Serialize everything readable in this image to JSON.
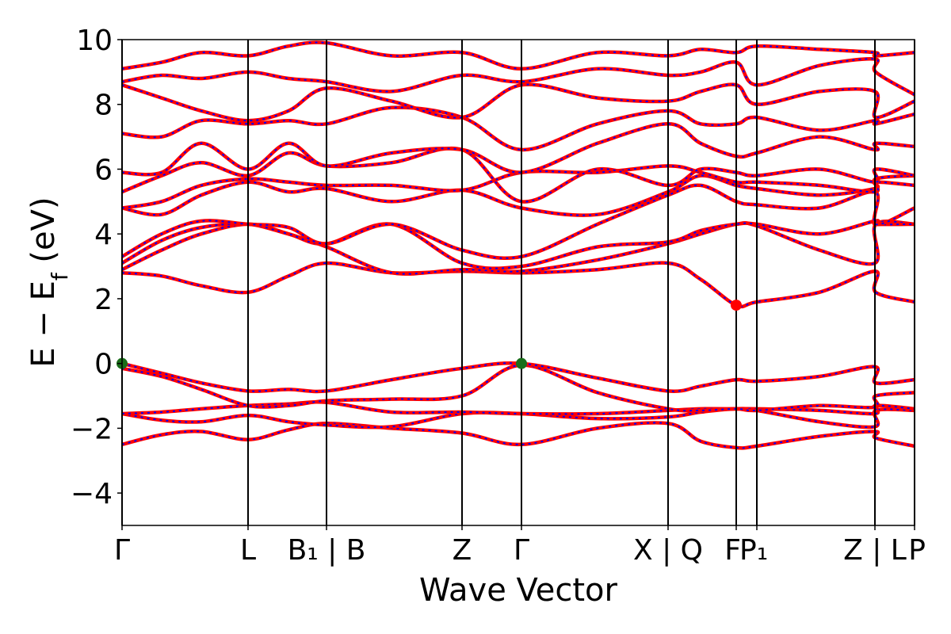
{
  "chart_data": {
    "type": "line",
    "title": "",
    "xlabel": "Wave Vector",
    "ylabel": "E − E",
    "ylabel_sub": "f",
    "ylabel_unit": " (eV)",
    "ylim": [
      -5,
      10
    ],
    "yticks": [
      -4,
      -2,
      0,
      2,
      4,
      6,
      8,
      10
    ],
    "ytick_labels": [
      "−4",
      "−2",
      "0",
      "2",
      "4",
      "6",
      "8",
      "10"
    ],
    "xlim": [
      0,
      1
    ],
    "grid": false,
    "legend": "none",
    "kpoints": [
      {
        "x": 0.0,
        "label": "Γ"
      },
      {
        "x": 0.159,
        "label": "L"
      },
      {
        "x": 0.258,
        "label": "B₁ | B"
      },
      {
        "x": 0.429,
        "label": "Z"
      },
      {
        "x": 0.504,
        "label": "Γ"
      },
      {
        "x": 0.689,
        "label": "X | Q"
      },
      {
        "x": 0.775,
        "label": "F"
      },
      {
        "x": 0.801,
        "label": "P₁"
      },
      {
        "x": 0.95,
        "label": "Z | L"
      },
      {
        "x": 1.0,
        "label": "P"
      }
    ],
    "series_colors": {
      "outer": "#ff0000",
      "inner": "#0000ff"
    },
    "special_points": [
      {
        "x": 0.0,
        "y": 0.0,
        "color": "#1a6e1a"
      },
      {
        "x": 0.504,
        "y": 0.0,
        "color": "#1a6e1a"
      },
      {
        "x": 0.775,
        "y": 1.8,
        "color": "#ff0000"
      }
    ],
    "bands": [
      [
        [
          0,
          -2.5
        ],
        [
          0.05,
          -2.2
        ],
        [
          0.1,
          -2.1
        ],
        [
          0.159,
          -2.35
        ],
        [
          0.21,
          -2.05
        ],
        [
          0.258,
          -1.85
        ],
        [
          0.34,
          -2.0
        ],
        [
          0.429,
          -2.15
        ],
        [
          0.504,
          -2.5
        ],
        [
          0.6,
          -2.0
        ],
        [
          0.689,
          -1.85
        ],
        [
          0.73,
          -2.4
        ],
        [
          0.775,
          -2.6
        ],
        [
          0.801,
          -2.55
        ],
        [
          0.88,
          -2.25
        ],
        [
          0.95,
          -2.1
        ],
        [
          0.951,
          -2.3
        ],
        [
          1.0,
          -2.55
        ]
      ],
      [
        [
          0,
          -1.55
        ],
        [
          0.05,
          -1.75
        ],
        [
          0.1,
          -1.8
        ],
        [
          0.159,
          -1.6
        ],
        [
          0.21,
          -1.8
        ],
        [
          0.258,
          -1.9
        ],
        [
          0.34,
          -1.95
        ],
        [
          0.429,
          -1.55
        ],
        [
          0.504,
          -1.55
        ],
        [
          0.6,
          -1.7
        ],
        [
          0.689,
          -1.65
        ],
        [
          0.73,
          -1.5
        ],
        [
          0.775,
          -1.4
        ],
        [
          0.801,
          -1.45
        ],
        [
          0.88,
          -1.8
        ],
        [
          0.95,
          -1.95
        ],
        [
          0.951,
          -1.45
        ],
        [
          1.0,
          -1.45
        ]
      ],
      [
        [
          0,
          -1.55
        ],
        [
          0.05,
          -1.5
        ],
        [
          0.1,
          -1.4
        ],
        [
          0.159,
          -1.3
        ],
        [
          0.21,
          -1.25
        ],
        [
          0.258,
          -1.2
        ],
        [
          0.34,
          -1.5
        ],
        [
          0.429,
          -1.5
        ],
        [
          0.504,
          -1.55
        ],
        [
          0.6,
          -1.55
        ],
        [
          0.689,
          -1.45
        ],
        [
          0.73,
          -1.4
        ],
        [
          0.775,
          -1.4
        ],
        [
          0.801,
          -1.4
        ],
        [
          0.88,
          -1.45
        ],
        [
          0.95,
          -1.55
        ],
        [
          0.951,
          -1.3
        ],
        [
          1.0,
          -1.4
        ]
      ],
      [
        [
          0,
          -0.15
        ],
        [
          0.05,
          -0.4
        ],
        [
          0.1,
          -0.8
        ],
        [
          0.159,
          -1.3
        ],
        [
          0.21,
          -1.3
        ],
        [
          0.258,
          -1.15
        ],
        [
          0.34,
          -1.1
        ],
        [
          0.429,
          -1.0
        ],
        [
          0.504,
          -0.05
        ],
        [
          0.6,
          -0.9
        ],
        [
          0.689,
          -1.4
        ],
        [
          0.73,
          -1.45
        ],
        [
          0.775,
          -1.4
        ],
        [
          0.801,
          -1.45
        ],
        [
          0.88,
          -1.3
        ],
        [
          0.95,
          -1.35
        ],
        [
          0.951,
          -1.0
        ],
        [
          1.0,
          -0.9
        ]
      ],
      [
        [
          0,
          0.0
        ],
        [
          0.05,
          -0.3
        ],
        [
          0.1,
          -0.6
        ],
        [
          0.159,
          -0.85
        ],
        [
          0.21,
          -0.8
        ],
        [
          0.258,
          -0.85
        ],
        [
          0.34,
          -0.5
        ],
        [
          0.429,
          -0.15
        ],
        [
          0.504,
          0.0
        ],
        [
          0.6,
          -0.45
        ],
        [
          0.689,
          -0.85
        ],
        [
          0.73,
          -0.7
        ],
        [
          0.775,
          -0.5
        ],
        [
          0.801,
          -0.55
        ],
        [
          0.88,
          -0.4
        ],
        [
          0.95,
          -0.1
        ],
        [
          0.951,
          -0.6
        ],
        [
          1.0,
          -0.5
        ]
      ],
      [
        [
          0,
          2.8
        ],
        [
          0.05,
          2.7
        ],
        [
          0.1,
          2.4
        ],
        [
          0.159,
          2.2
        ],
        [
          0.21,
          2.7
        ],
        [
          0.258,
          3.1
        ],
        [
          0.34,
          2.8
        ],
        [
          0.429,
          2.85
        ],
        [
          0.504,
          2.8
        ],
        [
          0.6,
          2.9
        ],
        [
          0.689,
          3.1
        ],
        [
          0.73,
          2.6
        ],
        [
          0.775,
          1.8
        ],
        [
          0.801,
          1.9
        ],
        [
          0.88,
          2.2
        ],
        [
          0.95,
          2.85
        ],
        [
          0.951,
          2.2
        ],
        [
          1.0,
          1.9
        ]
      ],
      [
        [
          0,
          2.9
        ],
        [
          0.05,
          3.5
        ],
        [
          0.1,
          4.0
        ],
        [
          0.159,
          4.3
        ],
        [
          0.21,
          4.0
        ],
        [
          0.258,
          3.6
        ],
        [
          0.34,
          2.8
        ],
        [
          0.429,
          2.9
        ],
        [
          0.504,
          2.85
        ],
        [
          0.6,
          3.2
        ],
        [
          0.689,
          3.7
        ],
        [
          0.73,
          4.0
        ],
        [
          0.775,
          4.3
        ],
        [
          0.801,
          4.25
        ],
        [
          0.88,
          3.5
        ],
        [
          0.95,
          3.1
        ],
        [
          0.951,
          4.3
        ],
        [
          1.0,
          4.3
        ]
      ],
      [
        [
          0,
          3.1
        ],
        [
          0.05,
          3.8
        ],
        [
          0.1,
          4.2
        ],
        [
          0.159,
          4.3
        ],
        [
          0.21,
          4.0
        ],
        [
          0.258,
          3.7
        ],
        [
          0.34,
          4.3
        ],
        [
          0.429,
          3.1
        ],
        [
          0.504,
          3.0
        ],
        [
          0.6,
          3.6
        ],
        [
          0.689,
          3.75
        ],
        [
          0.73,
          4.1
        ],
        [
          0.775,
          4.3
        ],
        [
          0.801,
          4.3
        ],
        [
          0.88,
          4.0
        ],
        [
          0.95,
          4.4
        ],
        [
          0.951,
          4.3
        ],
        [
          1.0,
          4.3
        ]
      ],
      [
        [
          0,
          3.3
        ],
        [
          0.05,
          4.0
        ],
        [
          0.1,
          4.4
        ],
        [
          0.159,
          4.3
        ],
        [
          0.21,
          4.2
        ],
        [
          0.258,
          3.7
        ],
        [
          0.34,
          4.3
        ],
        [
          0.429,
          3.5
        ],
        [
          0.504,
          3.3
        ],
        [
          0.6,
          4.3
        ],
        [
          0.689,
          5.2
        ],
        [
          0.73,
          5.5
        ],
        [
          0.775,
          5.0
        ],
        [
          0.801,
          4.9
        ],
        [
          0.88,
          4.8
        ],
        [
          0.95,
          5.3
        ],
        [
          0.951,
          4.3
        ],
        [
          1.0,
          4.8
        ]
      ],
      [
        [
          0,
          4.8
        ],
        [
          0.05,
          4.6
        ],
        [
          0.1,
          5.2
        ],
        [
          0.159,
          5.6
        ],
        [
          0.21,
          5.3
        ],
        [
          0.258,
          5.4
        ],
        [
          0.34,
          5.0
        ],
        [
          0.429,
          5.35
        ],
        [
          0.504,
          4.8
        ],
        [
          0.6,
          4.6
        ],
        [
          0.689,
          5.3
        ],
        [
          0.73,
          5.8
        ],
        [
          0.775,
          5.5
        ],
        [
          0.801,
          5.4
        ],
        [
          0.88,
          5.2
        ],
        [
          0.95,
          5.4
        ],
        [
          0.951,
          5.6
        ],
        [
          1.0,
          5.5
        ]
      ],
      [
        [
          0,
          4.8
        ],
        [
          0.05,
          5.0
        ],
        [
          0.1,
          5.5
        ],
        [
          0.159,
          5.7
        ],
        [
          0.21,
          5.6
        ],
        [
          0.258,
          5.5
        ],
        [
          0.34,
          5.5
        ],
        [
          0.429,
          5.35
        ],
        [
          0.504,
          5.9
        ],
        [
          0.6,
          5.9
        ],
        [
          0.689,
          6.1
        ],
        [
          0.73,
          5.9
        ],
        [
          0.775,
          5.6
        ],
        [
          0.801,
          5.6
        ],
        [
          0.88,
          5.5
        ],
        [
          0.95,
          5.3
        ],
        [
          0.951,
          5.7
        ],
        [
          1.0,
          5.8
        ]
      ],
      [
        [
          0,
          5.3
        ],
        [
          0.05,
          5.8
        ],
        [
          0.1,
          6.2
        ],
        [
          0.159,
          5.8
        ],
        [
          0.21,
          6.5
        ],
        [
          0.258,
          6.1
        ],
        [
          0.34,
          6.2
        ],
        [
          0.429,
          6.6
        ],
        [
          0.504,
          5.0
        ],
        [
          0.6,
          6.0
        ],
        [
          0.689,
          5.5
        ],
        [
          0.73,
          6.0
        ],
        [
          0.775,
          5.9
        ],
        [
          0.801,
          5.8
        ],
        [
          0.88,
          6.0
        ],
        [
          0.95,
          5.6
        ],
        [
          0.951,
          6.0
        ],
        [
          1.0,
          5.8
        ]
      ],
      [
        [
          0,
          5.9
        ],
        [
          0.05,
          5.9
        ],
        [
          0.1,
          6.8
        ],
        [
          0.159,
          6.0
        ],
        [
          0.21,
          6.8
        ],
        [
          0.258,
          6.1
        ],
        [
          0.34,
          6.5
        ],
        [
          0.429,
          6.6
        ],
        [
          0.504,
          5.9
        ],
        [
          0.6,
          6.8
        ],
        [
          0.689,
          7.4
        ],
        [
          0.73,
          6.8
        ],
        [
          0.775,
          6.4
        ],
        [
          0.801,
          6.5
        ],
        [
          0.88,
          7.0
        ],
        [
          0.95,
          6.6
        ],
        [
          0.951,
          6.8
        ],
        [
          1.0,
          6.7
        ]
      ],
      [
        [
          0,
          7.1
        ],
        [
          0.05,
          7.0
        ],
        [
          0.1,
          7.5
        ],
        [
          0.159,
          7.4
        ],
        [
          0.21,
          7.5
        ],
        [
          0.258,
          7.4
        ],
        [
          0.34,
          7.9
        ],
        [
          0.429,
          7.6
        ],
        [
          0.504,
          6.6
        ],
        [
          0.6,
          7.4
        ],
        [
          0.689,
          7.8
        ],
        [
          0.73,
          7.4
        ],
        [
          0.775,
          7.4
        ],
        [
          0.801,
          7.6
        ],
        [
          0.88,
          7.2
        ],
        [
          0.95,
          7.5
        ],
        [
          0.951,
          7.4
        ],
        [
          1.0,
          7.7
        ]
      ],
      [
        [
          0,
          8.6
        ],
        [
          0.05,
          8.2
        ],
        [
          0.1,
          7.8
        ],
        [
          0.159,
          7.5
        ],
        [
          0.21,
          7.8
        ],
        [
          0.258,
          8.5
        ],
        [
          0.34,
          8.1
        ],
        [
          0.429,
          7.6
        ],
        [
          0.504,
          8.6
        ],
        [
          0.6,
          8.2
        ],
        [
          0.689,
          8.1
        ],
        [
          0.73,
          8.4
        ],
        [
          0.775,
          8.6
        ],
        [
          0.801,
          8.0
        ],
        [
          0.88,
          8.4
        ],
        [
          0.95,
          8.4
        ],
        [
          0.951,
          7.6
        ],
        [
          1.0,
          8.1
        ]
      ],
      [
        [
          0,
          8.7
        ],
        [
          0.05,
          8.9
        ],
        [
          0.1,
          8.8
        ],
        [
          0.159,
          9.0
        ],
        [
          0.21,
          8.8
        ],
        [
          0.258,
          8.7
        ],
        [
          0.34,
          8.4
        ],
        [
          0.429,
          8.9
        ],
        [
          0.504,
          8.7
        ],
        [
          0.6,
          9.1
        ],
        [
          0.689,
          8.9
        ],
        [
          0.73,
          9.0
        ],
        [
          0.775,
          9.3
        ],
        [
          0.801,
          8.6
        ],
        [
          0.88,
          9.2
        ],
        [
          0.95,
          9.4
        ],
        [
          0.951,
          9.0
        ],
        [
          1.0,
          8.3
        ]
      ],
      [
        [
          0,
          9.1
        ],
        [
          0.05,
          9.3
        ],
        [
          0.1,
          9.6
        ],
        [
          0.159,
          9.5
        ],
        [
          0.21,
          9.8
        ],
        [
          0.258,
          9.9
        ],
        [
          0.34,
          9.5
        ],
        [
          0.429,
          9.6
        ],
        [
          0.504,
          9.1
        ],
        [
          0.6,
          9.6
        ],
        [
          0.689,
          9.5
        ],
        [
          0.73,
          9.7
        ],
        [
          0.775,
          9.6
        ],
        [
          0.801,
          9.8
        ],
        [
          0.88,
          9.7
        ],
        [
          0.95,
          9.6
        ],
        [
          0.951,
          9.5
        ],
        [
          1.0,
          9.6
        ]
      ]
    ]
  }
}
